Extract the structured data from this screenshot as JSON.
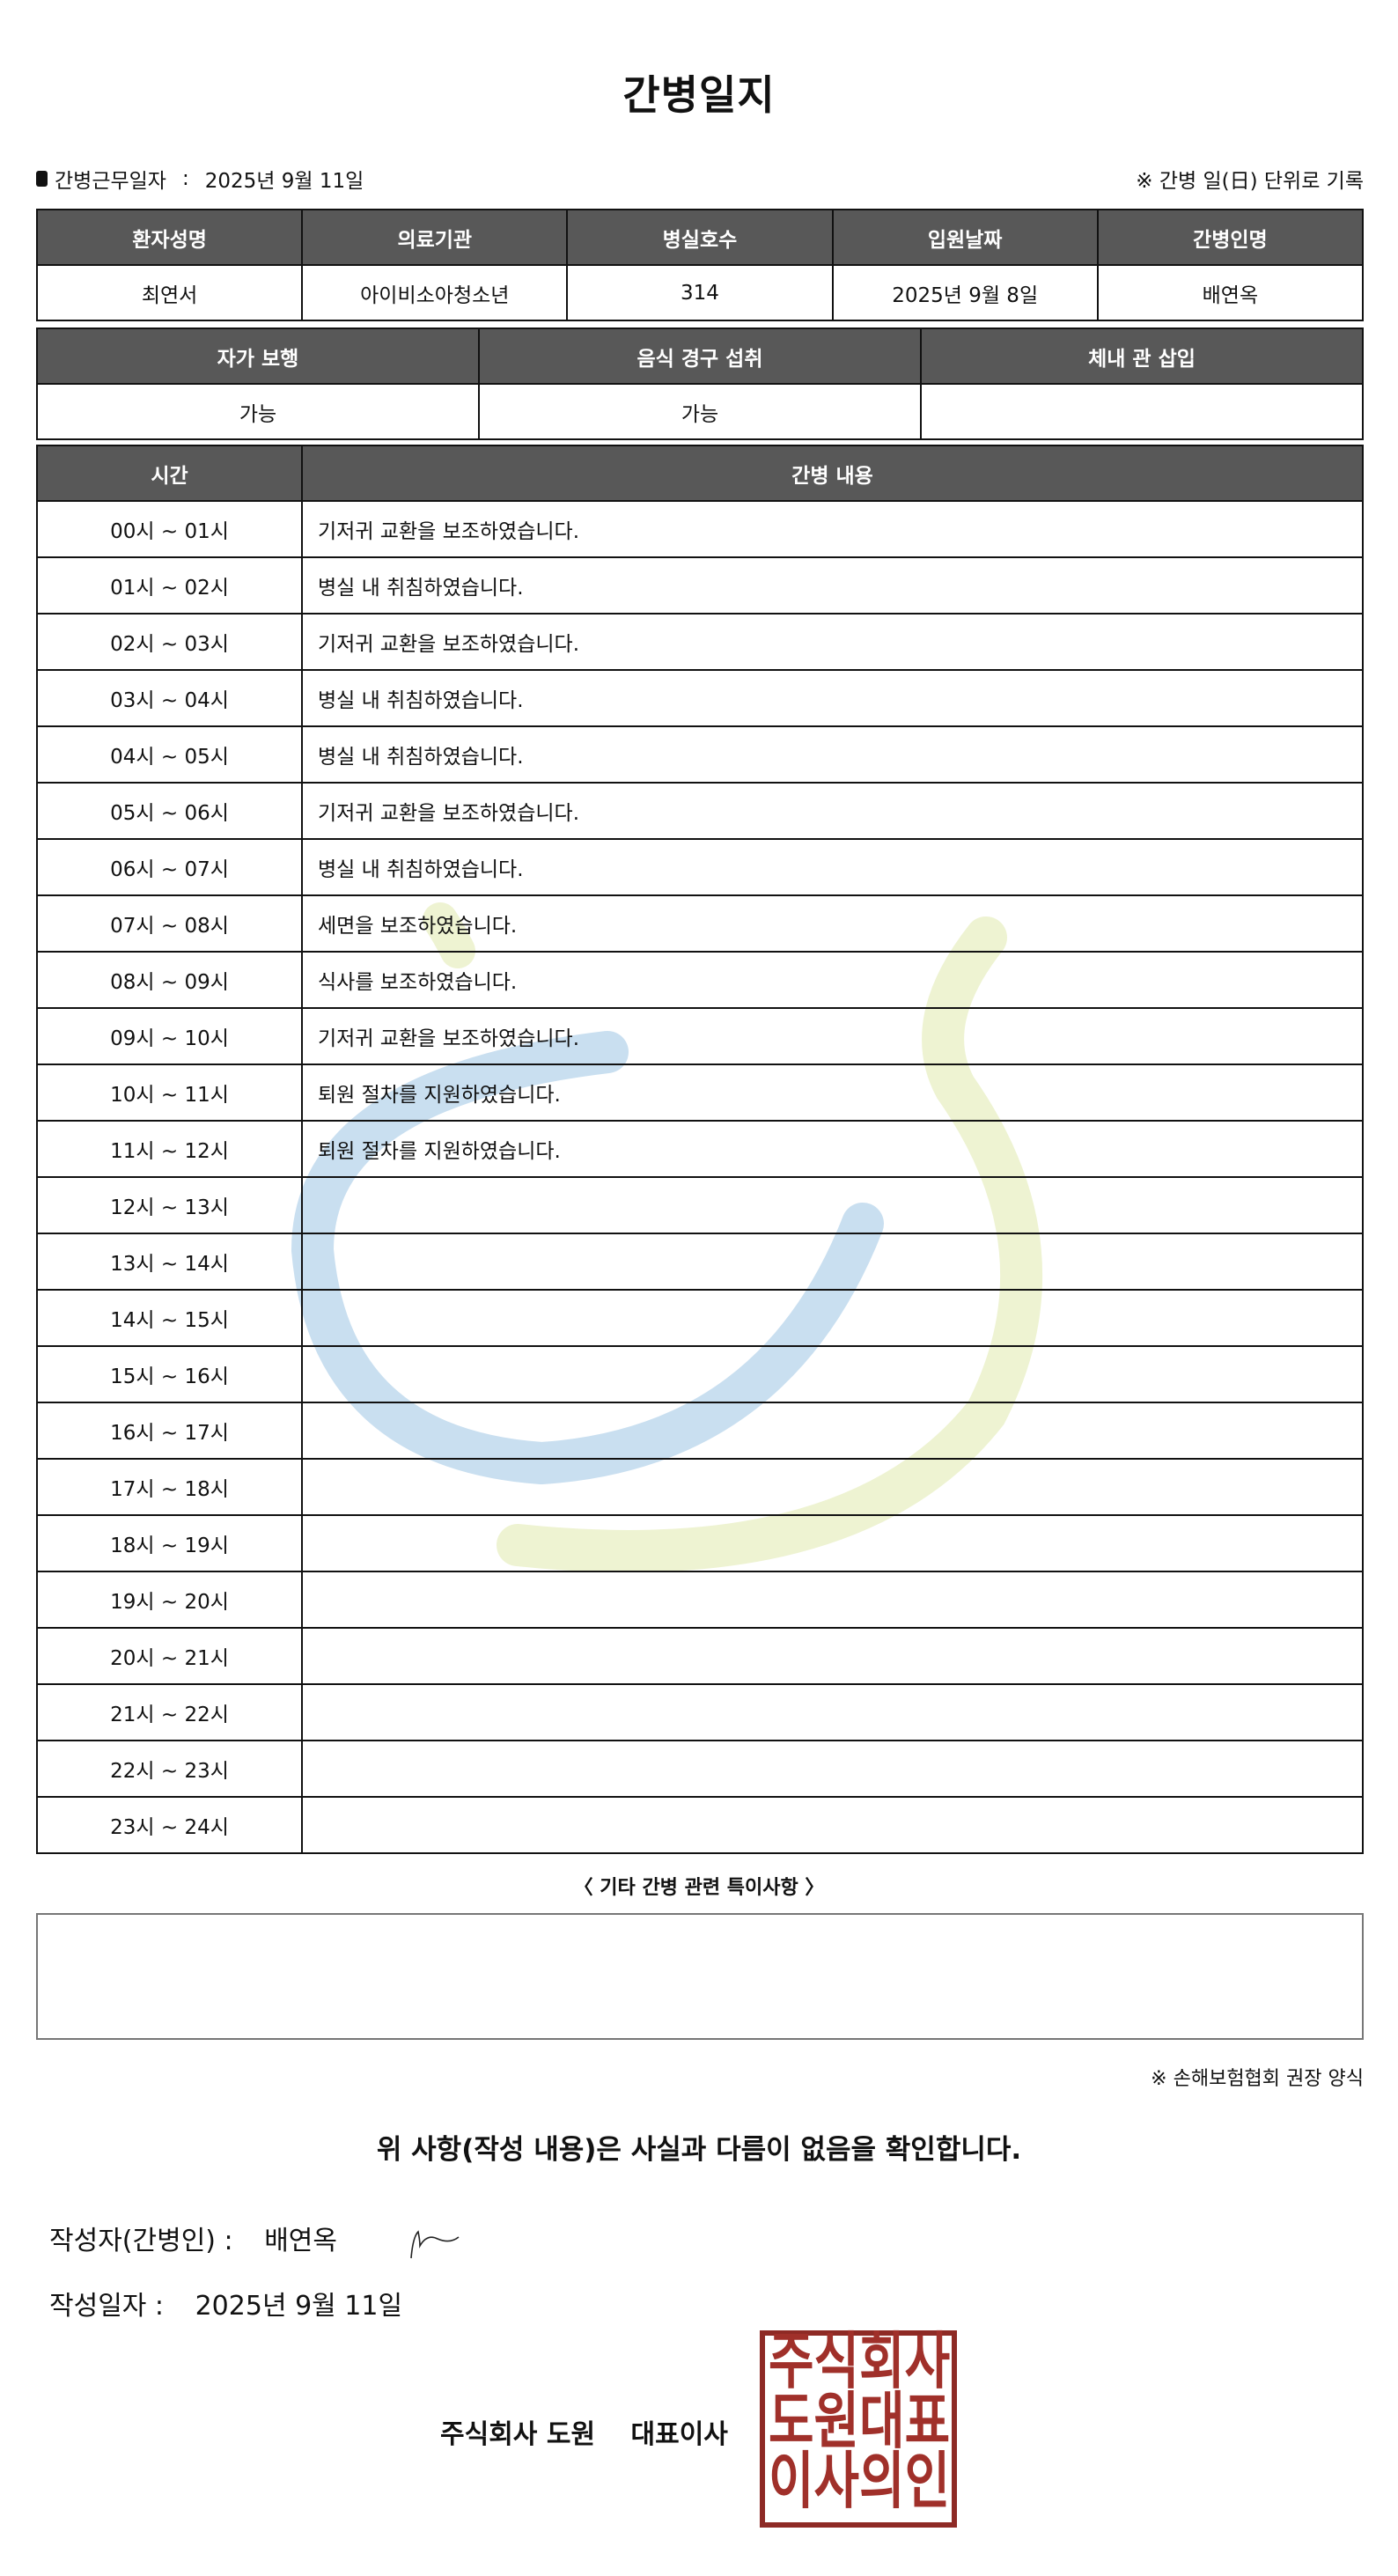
{
  "title": "간병일지",
  "info": {
    "work_date_label": "간병근무일자",
    "work_date_sep": ":",
    "work_date": "2025년 9월 11일",
    "note": "※ 간병 일(日) 단위로 기록"
  },
  "patient_table": {
    "headers": [
      "환자성명",
      "의료기관",
      "병실호수",
      "입원날짜",
      "간병인명"
    ],
    "values": [
      "최연서",
      "아이비소아청소년",
      "314",
      "2025년 9월 8일",
      "배연옥"
    ]
  },
  "status_table": {
    "headers": [
      "자가 보행",
      "음식 경구 섭취",
      "체내 관 삽입"
    ],
    "values": [
      "가능",
      "가능",
      ""
    ]
  },
  "log_table": {
    "headers": [
      "시간",
      "간병 내용"
    ],
    "rows": [
      {
        "time": "00시 ~ 01시",
        "content": "기저귀 교환을 보조하였습니다."
      },
      {
        "time": "01시 ~ 02시",
        "content": "병실 내 취침하였습니다."
      },
      {
        "time": "02시 ~ 03시",
        "content": "기저귀 교환을 보조하였습니다."
      },
      {
        "time": "03시 ~ 04시",
        "content": "병실 내 취침하였습니다."
      },
      {
        "time": "04시 ~ 05시",
        "content": "병실 내 취침하였습니다."
      },
      {
        "time": "05시 ~ 06시",
        "content": "기저귀 교환을 보조하였습니다."
      },
      {
        "time": "06시 ~ 07시",
        "content": "병실 내 취침하였습니다."
      },
      {
        "time": "07시 ~ 08시",
        "content": "세면을 보조하였습니다."
      },
      {
        "time": "08시 ~ 09시",
        "content": "식사를 보조하였습니다."
      },
      {
        "time": "09시 ~ 10시",
        "content": "기저귀 교환을 보조하였습니다."
      },
      {
        "time": "10시 ~ 11시",
        "content": "퇴원 절차를 지원하였습니다."
      },
      {
        "time": "11시 ~ 12시",
        "content": "퇴원 절차를 지원하였습니다."
      },
      {
        "time": "12시 ~ 13시",
        "content": ""
      },
      {
        "time": "13시 ~ 14시",
        "content": ""
      },
      {
        "time": "14시 ~ 15시",
        "content": ""
      },
      {
        "time": "15시 ~ 16시",
        "content": ""
      },
      {
        "time": "16시 ~ 17시",
        "content": ""
      },
      {
        "time": "17시 ~ 18시",
        "content": ""
      },
      {
        "time": "18시 ~ 19시",
        "content": ""
      },
      {
        "time": "19시 ~ 20시",
        "content": ""
      },
      {
        "time": "20시 ~ 21시",
        "content": ""
      },
      {
        "time": "21시 ~ 22시",
        "content": ""
      },
      {
        "time": "22시 ~ 23시",
        "content": ""
      },
      {
        "time": "23시 ~ 24시",
        "content": ""
      }
    ]
  },
  "special": {
    "title": "〈 기타 간병 관련 특이사항 〉",
    "content": ""
  },
  "form_note": "※ 손해보험협회 권장 양식",
  "confirm_text": "위 사항(작성 내용)은 사실과 다름이 없음을 확인합니다.",
  "writer": {
    "label": "작성자(간병인) :",
    "name": "배연옥"
  },
  "write_date": {
    "label": "작성일자 :",
    "value": "2025년 9월 11일"
  },
  "company": {
    "name": "주식회사 도원",
    "title": "대표이사"
  },
  "stamp_text": "주식회사도원대표이사의인",
  "colors": {
    "header_bg": "#585858",
    "stamp": "#a0302a",
    "watermark_blue": "#c9dff0",
    "watermark_green": "#eef3d2"
  }
}
